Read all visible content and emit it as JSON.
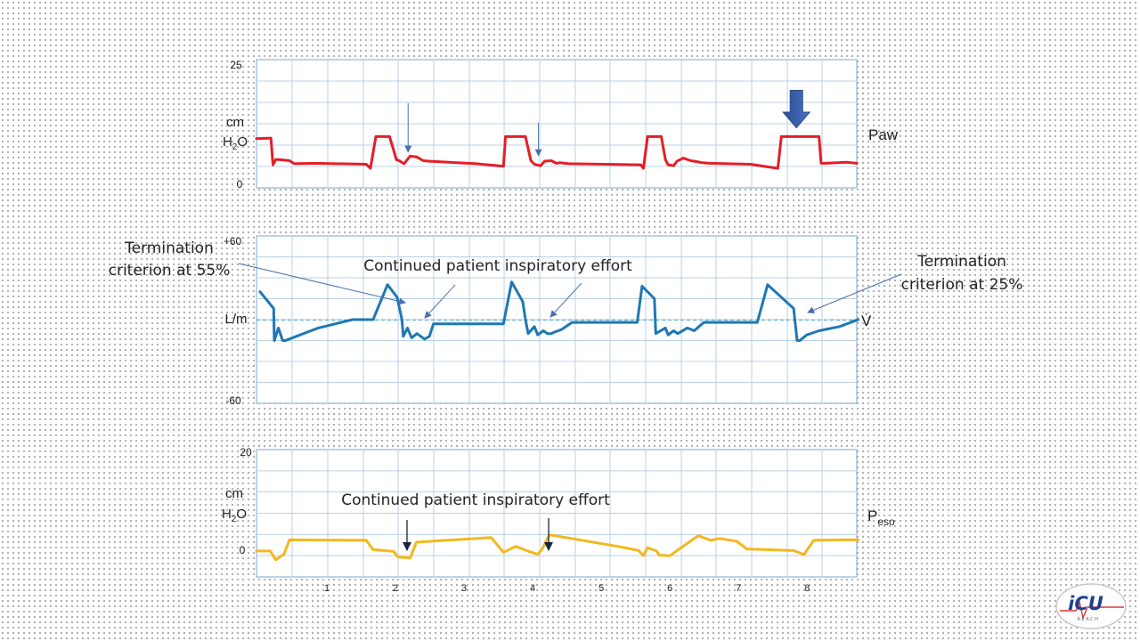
{
  "chart_data": [
    {
      "type": "line",
      "panel": "airway-pressure",
      "series_label": "Paw",
      "ylabel_top": "cm",
      "ylabel_bottom": "H",
      "ylabel_sub": "2",
      "ylabel_tail": "O",
      "ylim": [
        0,
        25
      ],
      "ytick_labels": [
        "25",
        "0"
      ],
      "color": "#e41e26",
      "grid": true,
      "x": [
        0,
        0.21,
        0.24,
        0.28,
        0.33,
        0.48,
        0.55,
        0.85,
        1.6,
        1.66,
        1.74,
        1.94,
        2.04,
        2.08,
        2.15,
        2.24,
        2.34,
        2.43,
        2.5,
        3.2,
        3.6,
        3.63,
        3.72,
        3.92,
        4.0,
        4.05,
        4.14,
        4.2,
        4.3,
        4.37,
        4.42,
        4.55,
        5.6,
        5.64,
        5.7,
        5.9,
        5.96,
        6.0,
        6.08,
        6.13,
        6.22,
        6.33,
        6.42,
        6.5,
        6.6,
        7.2,
        7.6,
        7.65,
        7.72,
        8.2,
        8.23,
        8.3,
        8.6,
        8.75
      ],
      "y": [
        9.6,
        9.7,
        4.5,
        5.5,
        5.5,
        5.3,
        4.7,
        4.8,
        4.6,
        3.8,
        10.0,
        10.0,
        5.5,
        5.3,
        4.7,
        6.2,
        6.0,
        5.3,
        5.2,
        4.7,
        4.2,
        10.0,
        10.0,
        10.0,
        5.3,
        4.6,
        4.3,
        5.2,
        5.3,
        4.8,
        4.9,
        4.7,
        4.5,
        3.8,
        10.0,
        10.0,
        5.5,
        4.5,
        4.3,
        5.2,
        5.8,
        5.3,
        5.1,
        4.9,
        4.8,
        4.6,
        3.8,
        10.0,
        10.0,
        10.0,
        4.8,
        4.8,
        5.0,
        4.8
      ],
      "markers": [
        {
          "kind": "thin-arrow",
          "x": 2.21,
          "y_from": 16.5,
          "y_to": 7.0
        },
        {
          "kind": "thin-arrow",
          "x": 4.11,
          "y_from": 12.7,
          "y_to": 6.3
        },
        {
          "kind": "block-arrow",
          "x": 7.87,
          "y_from": 19.0,
          "y_to": 11.7
        }
      ]
    },
    {
      "type": "line",
      "panel": "flow",
      "series_label": "V̇",
      "ylabel": "L/m",
      "ylim": [
        -60,
        60
      ],
      "ytick_labels": [
        "+60",
        "-60"
      ],
      "color": "#1f77b4",
      "zero_line": true,
      "grid": true,
      "x": [
        0.05,
        0.25,
        0.26,
        0.32,
        0.38,
        0.42,
        0.58,
        0.9,
        1.4,
        1.7,
        1.91,
        2.05,
        2.12,
        2.14,
        2.2,
        2.26,
        2.34,
        2.45,
        2.52,
        2.58,
        3.6,
        3.72,
        3.88,
        3.92,
        3.96,
        4.05,
        4.1,
        4.18,
        4.24,
        4.3,
        4.34,
        4.45,
        4.6,
        5.55,
        5.62,
        5.8,
        5.82,
        5.96,
        6.0,
        6.08,
        6.14,
        6.28,
        6.38,
        6.52,
        7.3,
        7.45,
        7.83,
        7.88,
        7.92,
        8.02,
        8.2,
        8.5,
        8.77
      ],
      "y": [
        20,
        8,
        -15,
        -6,
        -15,
        -15,
        -12,
        -6,
        0,
        0,
        25,
        16,
        0,
        -12,
        -6,
        -13,
        -10,
        -14,
        -12,
        -3,
        -3,
        27,
        13,
        0,
        -10,
        -5,
        -11,
        -8,
        -10,
        -10,
        -9,
        -7,
        -2,
        -2,
        24,
        15,
        -10,
        -6,
        -11,
        -8,
        -10,
        -6,
        -8,
        -2,
        -2,
        25,
        8,
        -15,
        -15,
        -11,
        -8,
        -5,
        0
      ],
      "annotations": [
        {
          "text_line1": "Termination",
          "text_line2": "criterion at 55%"
        },
        {
          "text": "Continued patient inspiratory effort"
        },
        {
          "text_line1": "Termination",
          "text_line2": "criterion at 25%"
        }
      ]
    },
    {
      "type": "line",
      "panel": "esophageal-pressure",
      "series_label": "P",
      "series_label_sub": "eso",
      "ylabel_top": "cm",
      "ylabel_bottom": "H",
      "ylabel_sub": "2",
      "ylabel_tail": "O",
      "ylim": [
        -7.5,
        20
      ],
      "ytick_labels": [
        "20",
        "0"
      ],
      "xtick_labels": [
        "1",
        "2",
        "3",
        "4",
        "5",
        "6",
        "7",
        "8"
      ],
      "color": "#f2b81d",
      "grid": true,
      "annotation": "Continued patient inspiratory effort",
      "x": [
        0,
        0.2,
        0.28,
        0.4,
        0.48,
        1.6,
        1.7,
        2.0,
        2.06,
        2.24,
        2.33,
        3.42,
        3.6,
        3.78,
        3.97,
        4.1,
        4.16,
        4.27,
        5.3,
        5.57,
        5.64,
        5.7,
        5.83,
        5.87,
        6.03,
        6.15,
        6.44,
        6.62,
        6.75,
        7.0,
        7.15,
        7.2,
        7.83,
        7.98,
        8.12,
        8.5,
        8.77
      ],
      "y": [
        -1.9,
        -1.9,
        -3.8,
        -2.6,
        0.5,
        0.4,
        -1.6,
        -2.0,
        -3.2,
        -3.4,
        0,
        1.0,
        -2.2,
        -0.9,
        -2.0,
        -2.6,
        -1.6,
        1.6,
        -1.0,
        -1.8,
        -2.9,
        -1.2,
        -1.9,
        -2.8,
        -2.9,
        -1.6,
        1.4,
        0.4,
        0.8,
        0.2,
        -1.5,
        -1.5,
        -1.8,
        -2.7,
        0.4,
        0.5,
        0.5
      ]
    }
  ],
  "logo": {
    "main": "iCU",
    "sub": "REACH"
  }
}
